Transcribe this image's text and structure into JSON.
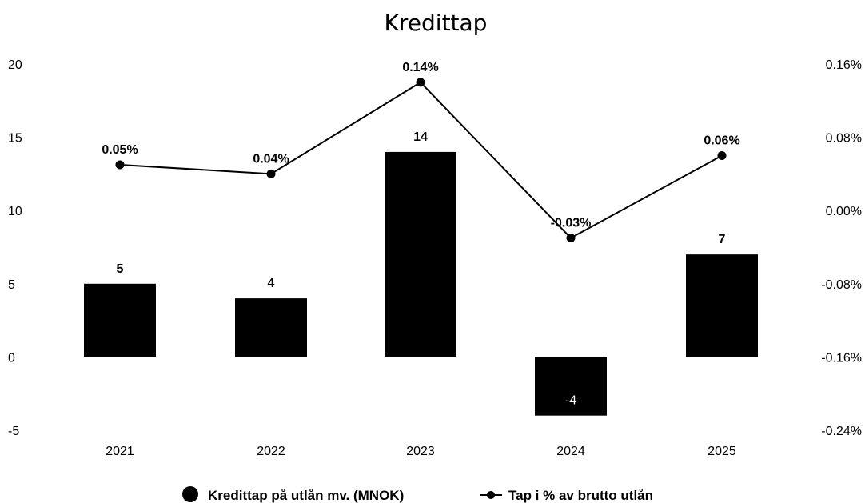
{
  "chart_data": {
    "type": "bar",
    "title": "Kredittap",
    "categories": [
      "2021",
      "2022",
      "2023",
      "2024",
      "2025"
    ],
    "series": [
      {
        "name": "Kredittap på utlån mv. (MNOK)",
        "type": "bar",
        "axis": "left",
        "values": [
          5,
          4,
          14,
          -4,
          7
        ],
        "labels": [
          "5",
          "4",
          "14",
          "-4",
          "7"
        ]
      },
      {
        "name": "Tap i % av brutto utlån",
        "type": "line",
        "axis": "right",
        "values": [
          0.05,
          0.04,
          0.14,
          -0.03,
          0.06
        ],
        "labels": [
          "0.05%",
          "0.04%",
          "0.14%",
          "-0.03%",
          "0.06%"
        ]
      }
    ],
    "y_left": {
      "min": -5,
      "max": 20,
      "ticks": [
        "20",
        "15",
        "10",
        "5",
        "0",
        "-5"
      ]
    },
    "y_right": {
      "min": -0.24,
      "max": 0.16,
      "ticks": [
        "0.16%",
        "0.08%",
        "0.00%",
        "-0.08%",
        "-0.16%",
        "-0.24%"
      ]
    },
    "grid": false,
    "legend_position": "bottom",
    "colors": {
      "bar": "#000000",
      "line": "#000000"
    }
  }
}
